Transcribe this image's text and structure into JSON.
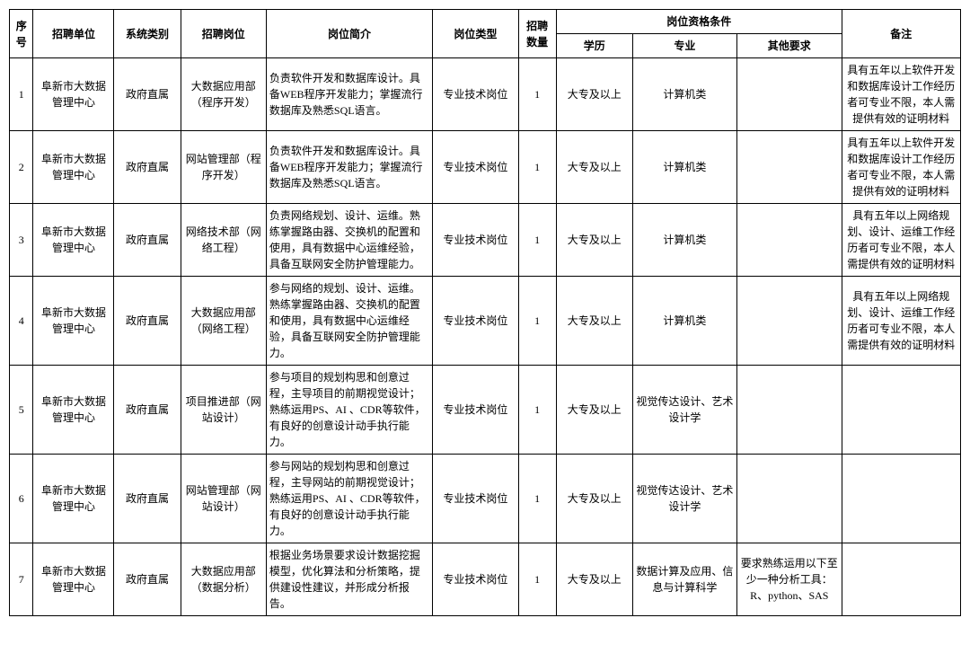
{
  "header": {
    "seq": "序号",
    "unit": "招聘单位",
    "system": "系统类别",
    "post": "招聘岗位",
    "desc": "岗位简介",
    "type": "岗位类型",
    "number": "招聘数量",
    "qualification_group": "岗位资格条件",
    "education": "学历",
    "major": "专业",
    "other": "其他要求",
    "remark": "备注"
  },
  "rows": [
    {
      "seq": "1",
      "unit": "阜新市大数据管理中心",
      "system": "政府直属",
      "post": "大数据应用部（程序开发）",
      "desc": "负责软件开发和数据库设计。具备WEB程序开发能力；掌握流行数据库及熟悉SQL语言。",
      "type": "专业技术岗位",
      "number": "1",
      "education": "大专及以上",
      "major": "计算机类",
      "other": "",
      "remark": "具有五年以上软件开发和数据库设计工作经历者可专业不限，本人需提供有效的证明材料"
    },
    {
      "seq": "2",
      "unit": "阜新市大数据管理中心",
      "system": "政府直属",
      "post": "网站管理部（程序开发）",
      "desc": "负责软件开发和数据库设计。具备WEB程序开发能力；掌握流行数据库及熟悉SQL语言。",
      "type": "专业技术岗位",
      "number": "1",
      "education": "大专及以上",
      "major": "计算机类",
      "other": "",
      "remark": "具有五年以上软件开发和数据库设计工作经历者可专业不限，本人需提供有效的证明材料"
    },
    {
      "seq": "3",
      "unit": "阜新市大数据管理中心",
      "system": "政府直属",
      "post": "网络技术部（网络工程）",
      "desc": "负责网络规划、设计、运维。熟练掌握路由器、交换机的配置和使用，具有数据中心运维经验，具备互联网安全防护管理能力。",
      "type": "专业技术岗位",
      "number": "1",
      "education": "大专及以上",
      "major": "计算机类",
      "other": "",
      "remark": "具有五年以上网络规划、设计、运维工作经历者可专业不限，本人需提供有效的证明材料"
    },
    {
      "seq": "4",
      "unit": "阜新市大数据管理中心",
      "system": "政府直属",
      "post": "大数据应用部（网络工程）",
      "desc": "参与网络的规划、设计、运维。熟练掌握路由器、交换机的配置和使用，具有数据中心运维经验，具备互联网安全防护管理能力。",
      "type": "专业技术岗位",
      "number": "1",
      "education": "大专及以上",
      "major": "计算机类",
      "other": "",
      "remark": "具有五年以上网络规划、设计、运维工作经历者可专业不限，本人需提供有效的证明材料"
    },
    {
      "seq": "5",
      "unit": "阜新市大数据管理中心",
      "system": "政府直属",
      "post": "项目推进部（网站设计）",
      "desc": "参与项目的规划构思和创意过程，主导项目的前期视觉设计；熟练运用PS、AI 、CDR等软件，有良好的创意设计动手执行能力。",
      "type": "专业技术岗位",
      "number": "1",
      "education": "大专及以上",
      "major": "视觉传达设计、艺术设计学",
      "other": "",
      "remark": ""
    },
    {
      "seq": "6",
      "unit": "阜新市大数据管理中心",
      "system": "政府直属",
      "post": "网站管理部（网站设计）",
      "desc": "参与网站的规划构思和创意过程，主导网站的前期视觉设计；熟练运用PS、AI 、CDR等软件，有良好的创意设计动手执行能力。",
      "type": "专业技术岗位",
      "number": "1",
      "education": "大专及以上",
      "major": "视觉传达设计、艺术设计学",
      "other": "",
      "remark": ""
    },
    {
      "seq": "7",
      "unit": "阜新市大数据管理中心",
      "system": "政府直属",
      "post": "大数据应用部（数据分析）",
      "desc": "根据业务场景要求设计数据挖掘模型，优化算法和分析策略，提供建设性建议，并形成分析报告。",
      "type": "专业技术岗位",
      "number": "1",
      "education": "大专及以上",
      "major": "数据计算及应用、信息与计算科学",
      "other": "要求熟练运用以下至少一种分析工具：R、python、SAS",
      "remark": ""
    }
  ]
}
